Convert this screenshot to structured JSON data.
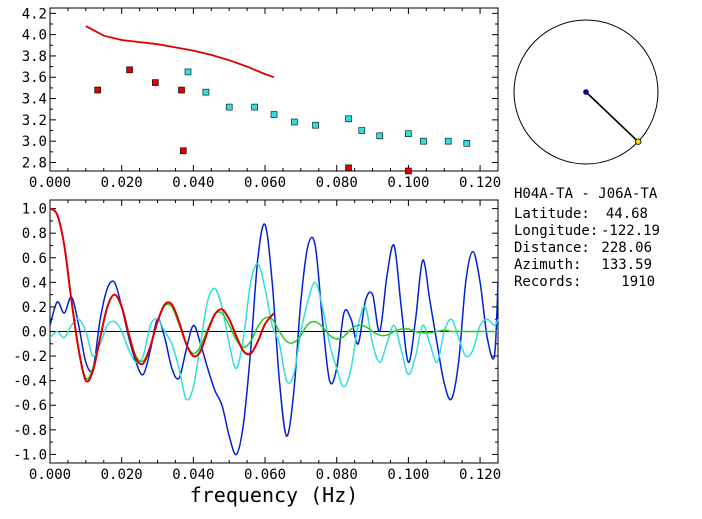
{
  "chart_data": [
    {
      "type": "scatter",
      "xlim": [
        0.0,
        0.125
      ],
      "ylim": [
        2.72,
        4.25
      ],
      "xticks": [
        "0.000",
        "0.020",
        "0.040",
        "0.060",
        "0.080",
        "0.100",
        "0.120"
      ],
      "yticks": [
        "2.8",
        "3.0",
        "3.2",
        "3.4",
        "3.6",
        "3.8",
        "4.0",
        "4.2"
      ],
      "xtick_values": [
        0.0,
        0.02,
        0.04,
        0.06,
        0.08,
        0.1,
        0.12
      ],
      "ytick_values": [
        2.8,
        3.0,
        3.2,
        3.4,
        3.6,
        3.8,
        4.0,
        4.2
      ],
      "series": [
        {
          "kind": "line",
          "color": "#dd0000",
          "x": [
            0.01,
            0.015,
            0.02,
            0.025,
            0.03,
            0.035,
            0.04,
            0.045,
            0.05,
            0.055,
            0.06,
            0.0625
          ],
          "y": [
            4.08,
            3.99,
            3.95,
            3.93,
            3.91,
            3.88,
            3.85,
            3.81,
            3.76,
            3.7,
            3.63,
            3.6
          ]
        },
        {
          "kind": "points",
          "color": "#dd0000",
          "x": [
            0.0133,
            0.0222,
            0.0294,
            0.0367,
            0.0372,
            0.0833,
            0.1
          ],
          "y": [
            3.48,
            3.67,
            3.55,
            3.48,
            2.91,
            2.75,
            2.72
          ]
        },
        {
          "kind": "points",
          "color": "#33dddd",
          "x": [
            0.0385,
            0.0435,
            0.05,
            0.0571,
            0.0625,
            0.0682,
            0.0741,
            0.0833,
            0.087,
            0.092,
            0.1,
            0.1042,
            0.1111,
            0.1163
          ],
          "y": [
            3.65,
            3.46,
            3.32,
            3.32,
            3.25,
            3.18,
            3.15,
            3.21,
            3.1,
            3.05,
            3.07,
            3.0,
            3.0,
            2.98
          ]
        }
      ]
    },
    {
      "type": "line",
      "xlabel": "frequency (Hz)",
      "xlim": [
        0.0,
        0.125
      ],
      "ylim": [
        -1.07,
        1.07
      ],
      "xticks": [
        "0.000",
        "0.020",
        "0.040",
        "0.060",
        "0.080",
        "0.100",
        "0.120"
      ],
      "yticks": [
        "1.0",
        "0.8",
        "0.6",
        "0.4",
        "0.2",
        "0.0",
        "-0.2",
        "-0.4",
        "-0.6",
        "-0.8",
        "-1.0"
      ],
      "xtick_values": [
        0.0,
        0.02,
        0.04,
        0.06,
        0.08,
        0.1,
        0.12
      ],
      "ytick_values": [
        1.0,
        0.8,
        0.6,
        0.4,
        0.2,
        0.0,
        -0.2,
        -0.4,
        -0.6,
        -0.8,
        -1.0
      ],
      "series": [
        {
          "color": "#0022cc",
          "x": [
            0.0,
            0.002,
            0.004,
            0.006,
            0.008,
            0.01,
            0.012,
            0.014,
            0.016,
            0.018,
            0.02,
            0.022,
            0.024,
            0.026,
            0.028,
            0.03,
            0.032,
            0.034,
            0.036,
            0.038,
            0.04,
            0.042,
            0.044,
            0.046,
            0.048,
            0.05,
            0.052,
            0.054,
            0.056,
            0.058,
            0.06,
            0.062,
            0.064,
            0.066,
            0.068,
            0.07,
            0.072,
            0.074,
            0.076,
            0.078,
            0.08,
            0.082,
            0.084,
            0.086,
            0.088,
            0.09,
            0.092,
            0.094,
            0.096,
            0.098,
            0.1,
            0.102,
            0.104,
            0.106,
            0.108,
            0.11,
            0.112,
            0.114,
            0.116,
            0.118,
            0.12,
            0.122,
            0.124,
            0.125
          ],
          "y": [
            0.05,
            0.24,
            0.15,
            0.28,
            0.05,
            -0.25,
            -0.3,
            0.1,
            0.35,
            0.4,
            0.2,
            -0.05,
            -0.25,
            -0.35,
            -0.15,
            0.1,
            -0.05,
            -0.3,
            -0.38,
            -0.15,
            0.05,
            -0.1,
            -0.3,
            -0.48,
            -0.6,
            -0.85,
            -1.0,
            -0.75,
            -0.15,
            0.6,
            0.87,
            0.4,
            -0.4,
            -0.85,
            -0.5,
            0.25,
            0.7,
            0.7,
            0.1,
            -0.4,
            -0.3,
            0.15,
            0.1,
            -0.1,
            0.25,
            0.3,
            0.0,
            0.45,
            0.7,
            0.2,
            -0.25,
            0.1,
            0.58,
            0.25,
            -0.1,
            -0.42,
            -0.55,
            -0.25,
            0.4,
            0.65,
            0.4,
            -0.05,
            -0.2,
            0.4
          ]
        },
        {
          "color": "#33dddd",
          "x": [
            0.0,
            0.002,
            0.004,
            0.006,
            0.008,
            0.01,
            0.012,
            0.014,
            0.016,
            0.018,
            0.02,
            0.022,
            0.024,
            0.026,
            0.028,
            0.03,
            0.032,
            0.034,
            0.036,
            0.038,
            0.04,
            0.042,
            0.044,
            0.046,
            0.048,
            0.05,
            0.052,
            0.054,
            0.056,
            0.058,
            0.06,
            0.062,
            0.064,
            0.066,
            0.068,
            0.07,
            0.072,
            0.074,
            0.076,
            0.078,
            0.08,
            0.082,
            0.084,
            0.086,
            0.088,
            0.09,
            0.092,
            0.094,
            0.096,
            0.098,
            0.1,
            0.102,
            0.104,
            0.106,
            0.108,
            0.11,
            0.112,
            0.114,
            0.116,
            0.118,
            0.12,
            0.122,
            0.124,
            0.125
          ],
          "y": [
            -0.05,
            0.0,
            -0.05,
            0.05,
            0.1,
            0.0,
            -0.2,
            -0.1,
            0.05,
            0.08,
            0.0,
            -0.15,
            -0.25,
            -0.2,
            0.05,
            0.1,
            0.0,
            -0.1,
            -0.3,
            -0.55,
            -0.45,
            -0.1,
            0.25,
            0.35,
            0.2,
            -0.1,
            -0.3,
            -0.05,
            0.4,
            0.55,
            0.35,
            0.05,
            -0.1,
            -0.4,
            -0.35,
            0.0,
            0.25,
            0.4,
            0.2,
            -0.1,
            -0.3,
            -0.45,
            -0.3,
            0.05,
            0.2,
            -0.1,
            -0.25,
            -0.1,
            0.05,
            -0.15,
            -0.35,
            -0.2,
            0.05,
            -0.1,
            -0.25,
            0.0,
            0.1,
            -0.05,
            -0.2,
            -0.15,
            0.05,
            0.1,
            0.05,
            0.1
          ]
        },
        {
          "color": "#22cc22",
          "x": [
            0.0,
            0.002,
            0.004,
            0.006,
            0.008,
            0.01,
            0.012,
            0.014,
            0.016,
            0.018,
            0.02,
            0.022,
            0.024,
            0.026,
            0.028,
            0.03,
            0.032,
            0.034,
            0.036,
            0.038,
            0.04,
            0.042,
            0.044,
            0.046,
            0.048,
            0.05,
            0.052,
            0.054,
            0.056,
            0.058,
            0.06,
            0.062,
            0.064,
            0.066,
            0.068,
            0.07,
            0.072,
            0.074,
            0.076,
            0.078,
            0.08,
            0.082,
            0.084,
            0.086,
            0.088,
            0.09,
            0.092,
            0.094,
            0.096,
            0.098,
            0.1,
            0.102,
            0.104,
            0.106,
            0.108,
            0.11,
            0.112,
            0.114,
            0.116,
            0.118,
            0.12,
            0.122,
            0.124,
            0.125
          ],
          "y": [
            1.0,
            0.95,
            0.7,
            0.25,
            -0.15,
            -0.38,
            -0.3,
            -0.05,
            0.2,
            0.3,
            0.2,
            -0.02,
            -0.2,
            -0.24,
            -0.12,
            0.08,
            0.21,
            0.2,
            0.06,
            -0.1,
            -0.18,
            -0.12,
            0.02,
            0.14,
            0.15,
            0.05,
            -0.07,
            -0.13,
            -0.08,
            0.04,
            0.11,
            0.1,
            0.0,
            -0.08,
            -0.09,
            -0.03,
            0.06,
            0.08,
            0.04,
            -0.03,
            -0.06,
            -0.04,
            0.02,
            0.05,
            0.04,
            0.0,
            -0.03,
            -0.03,
            0.0,
            0.02,
            0.02,
            0.0,
            -0.01,
            -0.01,
            0.0,
            0.01,
            0.0,
            0.0,
            0.0,
            0.0,
            0.0,
            0.0,
            0.0,
            0.0
          ]
        },
        {
          "color": "#dd0000",
          "x": [
            0.0,
            0.002,
            0.004,
            0.006,
            0.008,
            0.01,
            0.012,
            0.014,
            0.016,
            0.018,
            0.02,
            0.022,
            0.024,
            0.026,
            0.028,
            0.03,
            0.032,
            0.034,
            0.036,
            0.038,
            0.04,
            0.042,
            0.044,
            0.046,
            0.048,
            0.05,
            0.052,
            0.054,
            0.056,
            0.058,
            0.06,
            0.0625
          ],
          "y": [
            1.0,
            0.95,
            0.7,
            0.25,
            -0.15,
            -0.4,
            -0.32,
            -0.05,
            0.2,
            0.3,
            0.2,
            -0.02,
            -0.22,
            -0.26,
            -0.12,
            0.08,
            0.22,
            0.22,
            0.08,
            -0.1,
            -0.2,
            -0.16,
            0.0,
            0.14,
            0.18,
            0.1,
            -0.04,
            -0.16,
            -0.18,
            -0.08,
            0.06,
            0.15
          ]
        }
      ]
    }
  ],
  "compass": {
    "azimuth_deg": 133.59,
    "line_color": "#000000",
    "center_color": "#000088",
    "endpoint_color": "#ffdd00"
  },
  "info": {
    "pair": "H04A-TA  -  J06A-TA",
    "latitude_label": "Latitude:",
    "latitude_value": "44.68",
    "longitude_label": "Longitude:",
    "longitude_value": "-122.19",
    "distance_label": "Distance:",
    "distance_value": "228.06",
    "azimuth_label": "Azimuth:",
    "azimuth_value": "133.59",
    "records_label": "Records:",
    "records_value": "1910"
  }
}
